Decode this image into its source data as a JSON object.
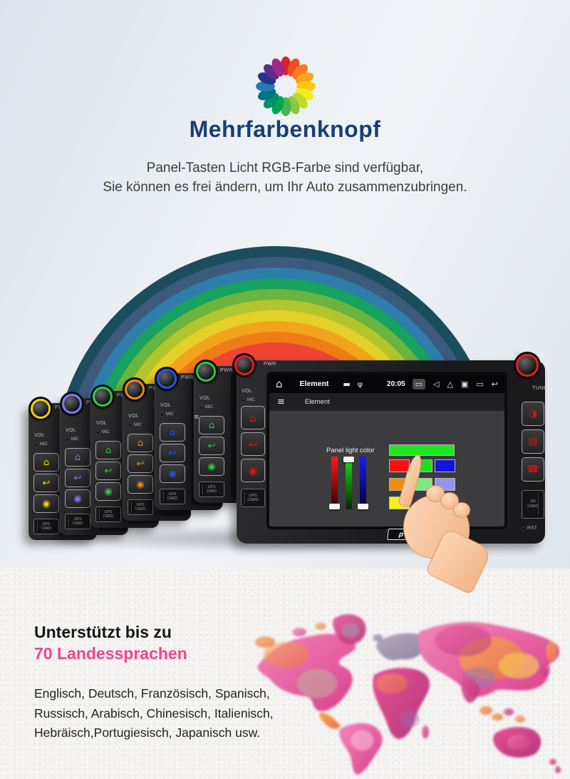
{
  "header": {
    "title": "Mehrfarbenknopf",
    "title_color": "#173f73",
    "subtitle_lines": [
      "Panel-Tasten Licht RGB-Farbe sind verfügbar,",
      "Sie können es frei ändern, um Ihr Auto zusammenzubringen."
    ],
    "color_wheel_petals": [
      "#d6232b",
      "#ef4e22",
      "#f47b20",
      "#f9a61a",
      "#fdc60f",
      "#f3eb1e",
      "#c3d82d",
      "#8cc63f",
      "#45b649",
      "#00a551",
      "#008f68",
      "#027180",
      "#2579b5",
      "#27348b",
      "#5f2c8d",
      "#a3248e"
    ]
  },
  "rainbow_bands": [
    "#1c4d5e",
    "#3c5a7b",
    "#2e7dab",
    "#17a25f",
    "#6ab43f",
    "#b3c52c",
    "#e5cf29",
    "#f2a41d",
    "#ee7d17",
    "#ee4434"
  ],
  "device_labels": {
    "pwr": "PWR",
    "vol": "VOL",
    "mic": "MIC",
    "gps_line1": "GPS",
    "gps_line2": "CARD",
    "sel": "SEL",
    "tune": "TUNE",
    "sd_line1": "SD",
    "sd_line2": "CARD",
    "rst": "RST"
  },
  "left_buttons": [
    {
      "name": "home-button-icon",
      "glyph": "⌂"
    },
    {
      "name": "return-button-icon",
      "glyph": "↩"
    },
    {
      "name": "eject-button-icon",
      "glyph": "◉"
    }
  ],
  "back_units": [
    {
      "name": "yellow",
      "color": "#f2d000"
    },
    {
      "name": "violet",
      "color": "#7d7df0"
    },
    {
      "name": "green",
      "color": "#2ecc40"
    },
    {
      "name": "orange",
      "color": "#f08a12"
    },
    {
      "name": "blue",
      "color": "#2255ee"
    },
    {
      "name": "green2",
      "color": "#22cc33"
    }
  ],
  "front_unit": {
    "ring_color": "#e02020",
    "icon_color": "#dd1111",
    "brand": "pumpkin",
    "right_buttons": [
      {
        "name": "display-button-icon",
        "glyph": "◑"
      },
      {
        "name": "radio-button-icon",
        "glyph": "▤"
      },
      {
        "name": "phone-button-icon",
        "glyph": "☎"
      }
    ],
    "screen": {
      "status": {
        "home_glyph": "⌂",
        "app": "Element",
        "time": "20:05",
        "mid_icons": [
          {
            "name": "sd-card-icon",
            "glyph": "▬"
          },
          {
            "name": "usb-icon",
            "glyph": "ψ"
          }
        ],
        "right_icons": [
          {
            "name": "active-app-badge-icon",
            "glyph": "▭",
            "badged": true
          },
          {
            "name": "volume-icon",
            "glyph": "◁"
          },
          {
            "name": "eject-icon",
            "glyph": "△"
          },
          {
            "name": "screenshot-icon",
            "glyph": "▣"
          },
          {
            "name": "window-icon",
            "glyph": "▭"
          },
          {
            "name": "back-icon",
            "glyph": "↩"
          }
        ]
      },
      "nav": {
        "menu_glyph": "≡",
        "title": "Element"
      },
      "panel_label": "Panel light color",
      "sliders": [
        {
          "channel": "red",
          "top": "#ff1a1a",
          "bottom": "#2a0000",
          "handle": "bottom"
        },
        {
          "channel": "green",
          "top": "#1ce51c",
          "bottom": "#002a00",
          "handle": "top"
        },
        {
          "channel": "blue",
          "top": "#1a1aff",
          "bottom": "#00002a",
          "handle": "bottom"
        }
      ],
      "current_color": "#1fe51f",
      "swatch_rows": [
        [
          "#fb0f0f",
          "#1edf1e",
          "#1414da"
        ],
        [
          "#ef8d10",
          "#7fe87f",
          "#9595ee"
        ],
        [
          "#f6f215",
          null,
          "rainbow"
        ]
      ],
      "rainbow_swatch_gradient": [
        "#00cfff",
        "#2233ff",
        "#ff00ff",
        "#ff2d8a",
        "#ffe13a"
      ]
    }
  },
  "footer": {
    "heading": "Unterstützt bis zu",
    "subheading": "70 Landessprachen",
    "accent_color": "#f2428f",
    "languages_lines": [
      "Englisch, Deutsch, Französisch, Spanisch,",
      "Russisch, Arabisch, Chinesisch, Italienisch,",
      "Hebräisch,Portugiesisch, Japanisch usw."
    ]
  }
}
